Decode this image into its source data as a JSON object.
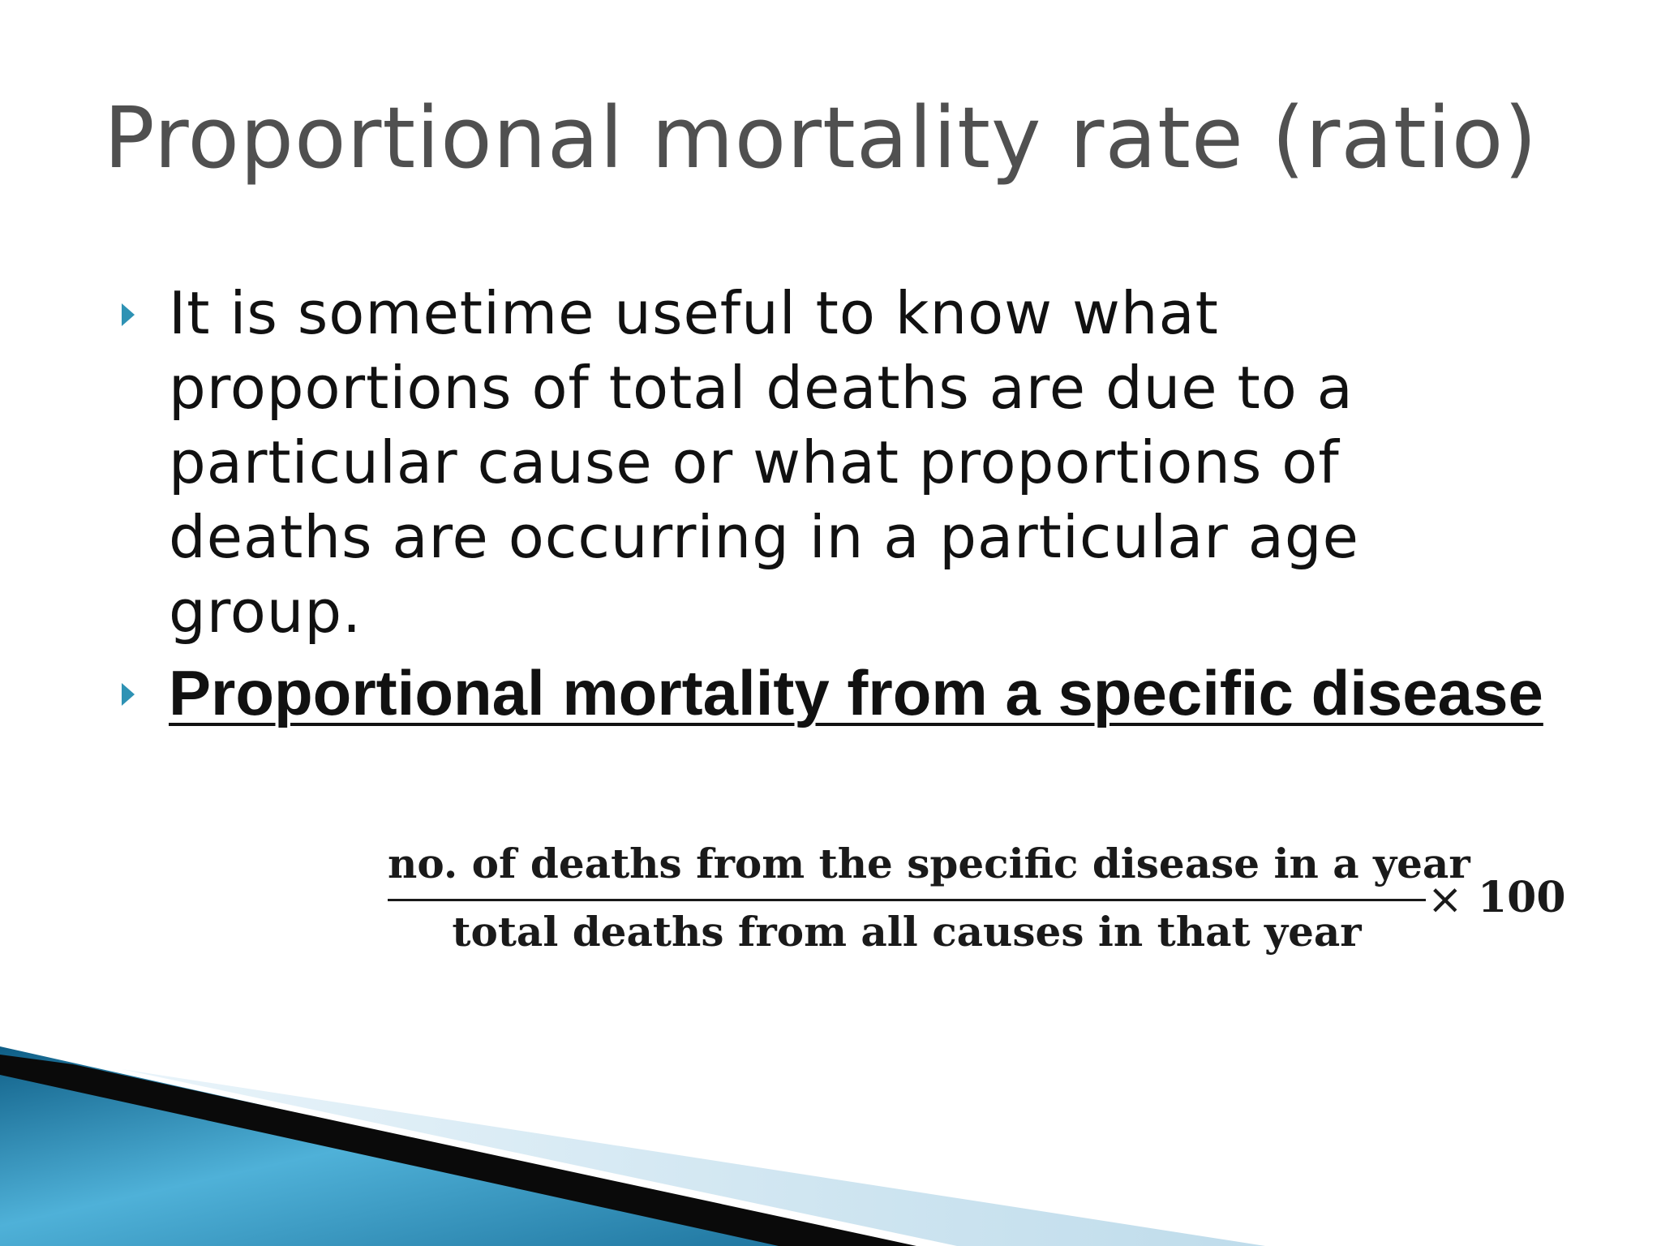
{
  "slide": {
    "title": "Proportional mortality rate (ratio)",
    "bullets": [
      {
        "text": "It is sometime useful to know what proportions of total deaths are due to a particular cause or what proportions of deaths are occurring in a particular age group."
      },
      {
        "text": "Proportional mortality from a specific disease"
      }
    ],
    "formula": {
      "numerator": "no. of deaths from the specific disease in a year",
      "denominator": "total deaths from all causes in that year",
      "operator": "×",
      "multiplier": "100"
    },
    "bullet_icon": "triangle-right-icon",
    "colors": {
      "title": "#505050",
      "body_text": "#111111",
      "bullet": "#2e92b4",
      "accent_blue": "#1a6f99",
      "accent_light": "#cfe6f2"
    }
  }
}
